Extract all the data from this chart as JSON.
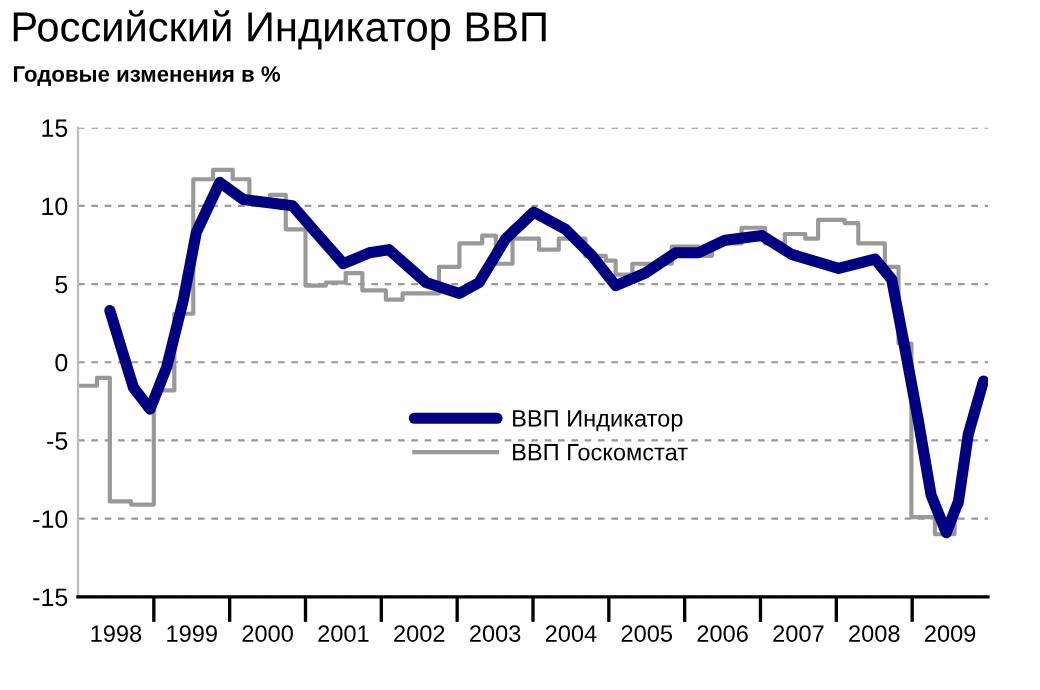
{
  "chart_data": {
    "type": "line",
    "title": "Российский Индикатор ВВП",
    "ylabel": "Годовые изменения в %",
    "xlim": [
      1998,
      2010
    ],
    "ylim": [
      -15,
      15
    ],
    "yticks": [
      -15,
      -10,
      -5,
      0,
      5,
      10,
      15
    ],
    "xticks": [
      {
        "value": 1998.5,
        "label": "1998"
      },
      {
        "value": 1999,
        "label": null
      },
      {
        "value": 1999.5,
        "label": "1999"
      },
      {
        "value": 2000,
        "label": null
      },
      {
        "value": 2000.5,
        "label": "2000"
      },
      {
        "value": 2001,
        "label": null
      },
      {
        "value": 2001.5,
        "label": "2001"
      },
      {
        "value": 2002,
        "label": null
      },
      {
        "value": 2002.5,
        "label": "2002"
      },
      {
        "value": 2003,
        "label": null
      },
      {
        "value": 2003.5,
        "label": "2003"
      },
      {
        "value": 2004,
        "label": null
      },
      {
        "value": 2004.5,
        "label": "2004"
      },
      {
        "value": 2005,
        "label": null
      },
      {
        "value": 2005.5,
        "label": "2005"
      },
      {
        "value": 2006,
        "label": null
      },
      {
        "value": 2006.5,
        "label": "2006"
      },
      {
        "value": 2007,
        "label": null
      },
      {
        "value": 2007.5,
        "label": "2007"
      },
      {
        "value": 2008,
        "label": null
      },
      {
        "value": 2008.5,
        "label": "2008"
      },
      {
        "value": 2009,
        "label": null
      },
      {
        "value": 2009.5,
        "label": "2009"
      }
    ],
    "grid": "y",
    "legend": "center",
    "marker": "none",
    "series": [
      {
        "name": "ВВП Индикатор",
        "color": "#000080",
        "x": [
          1998.42,
          1998.73,
          1998.95,
          1999.17,
          1999.39,
          1999.56,
          1999.87,
          2000.18,
          2000.83,
          2001.1,
          2001.5,
          2001.84,
          2002.1,
          2002.59,
          2003.03,
          2003.29,
          2003.64,
          2004.01,
          2004.43,
          2004.78,
          2005.09,
          2005.48,
          2005.88,
          2006.18,
          2006.53,
          2007.02,
          2007.41,
          2008.03,
          2008.51,
          2008.73,
          2008.9,
          2009.08,
          2009.25,
          2009.45,
          2009.61,
          2009.74,
          2009.94
        ],
        "values": [
          3.3,
          -1.6,
          -3.0,
          -0.3,
          4.0,
          8.3,
          11.5,
          10.4,
          10.0,
          8.5,
          6.3,
          7.0,
          7.2,
          5.1,
          4.4,
          5.1,
          7.9,
          9.6,
          8.5,
          6.8,
          4.9,
          5.7,
          7.0,
          7.0,
          7.8,
          8.1,
          6.9,
          6.0,
          6.6,
          5.3,
          1.0,
          -3.7,
          -8.5,
          -10.9,
          -8.9,
          -4.6,
          -1.2
        ]
      },
      {
        "name": "ВВП Госкомстат",
        "type": "step",
        "color": "#999999",
        "x": [
          1998.03,
          1998.25,
          1998.42,
          1998.7,
          1999.0,
          1999.27,
          1999.52,
          1999.78,
          2000.04,
          2000.26,
          2000.53,
          2000.74,
          2001.0,
          2001.27,
          2001.53,
          2001.75,
          2002.06,
          2002.28,
          2002.76,
          2003.03,
          2003.33,
          2003.51,
          2003.73,
          2004.08,
          2004.34,
          2004.69,
          2004.96,
          2005.09,
          2005.31,
          2005.83,
          2006.18,
          2006.36,
          2006.75,
          2007.06,
          2007.32,
          2007.59,
          2007.76,
          2008.11,
          2008.29,
          2008.64,
          2008.82,
          2008.99,
          2009.3,
          2009.56,
          2009.65
        ],
        "values": [
          -1.5,
          -1.0,
          -8.9,
          -9.1,
          -1.8,
          3.1,
          11.7,
          12.3,
          11.7,
          10.4,
          10.7,
          8.5,
          4.9,
          5.1,
          5.7,
          4.6,
          4.0,
          4.4,
          6.1,
          7.6,
          8.1,
          6.3,
          7.9,
          7.2,
          7.9,
          6.8,
          6.5,
          5.6,
          6.3,
          7.4,
          6.8,
          7.6,
          8.6,
          7.6,
          8.2,
          7.9,
          9.1,
          8.9,
          7.6,
          6.1,
          1.2,
          -9.9,
          -11.0,
          -9.1,
          -9.1
        ]
      }
    ]
  }
}
